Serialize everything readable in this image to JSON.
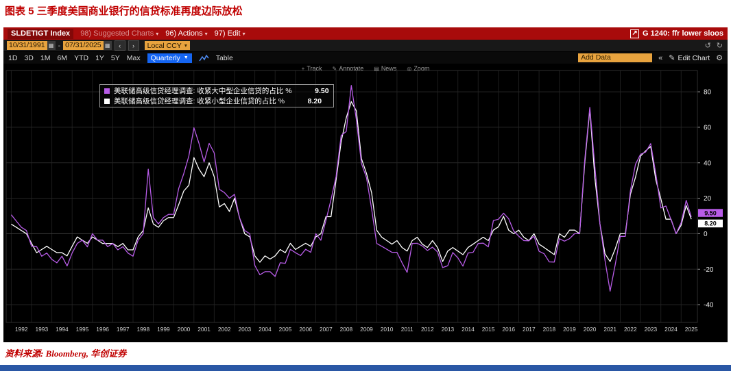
{
  "page": {
    "title": "图表 5  三季度美国商业银行的信贷标准再度边际放松",
    "source": "资料来源: Bloomberg,  华创证券",
    "accent_red": "#c00000",
    "bottom_bar_blue": "#2a57a5"
  },
  "icons": {
    "caret_down": "▾",
    "caret_down_filled": "▼",
    "prev": "‹",
    "next": "›",
    "undo": "↺",
    "redo": "↻",
    "collapse": "«",
    "pencil": "✎",
    "gear": "⚙",
    "popout": "↗",
    "calendar": "▦",
    "track": "+",
    "annotate": "✎",
    "news": "▤",
    "zoom": "◎"
  },
  "terminal": {
    "titlebar": {
      "ticker": "SLDETIGT Index",
      "suggested_charts": "98) Suggested Charts",
      "actions": "96) Actions",
      "edit": "97) Edit",
      "chart_ref": "G 1240: ffr lower sloos"
    },
    "toolbar": {
      "date_from": "10/31/1991",
      "date_to": "07/31/2025",
      "range_separator": "-",
      "currency": "Local CCY",
      "periods": [
        "1D",
        "3D",
        "1M",
        "6M",
        "YTD",
        "1Y",
        "5Y",
        "Max"
      ],
      "frequency": "Quarterly",
      "table": "Table",
      "add_data": "Add Data",
      "edit_chart": "Edit Chart"
    },
    "chart_tools": [
      {
        "label": "Track"
      },
      {
        "label": "Annotate"
      },
      {
        "label": "News"
      },
      {
        "label": "Zoom"
      }
    ]
  },
  "chart_data": {
    "type": "line",
    "frequency": "quarterly",
    "x_start_year": 1992,
    "x_tick_labels": [
      "1992",
      "1993",
      "1994",
      "1995",
      "1996",
      "1997",
      "1998",
      "1999",
      "2000",
      "2001",
      "2002",
      "2003",
      "2004",
      "2005",
      "2006",
      "2007",
      "2008",
      "2009",
      "2010",
      "2011",
      "2012",
      "2013",
      "2014",
      "2015",
      "2016",
      "2017",
      "2018",
      "2019",
      "2020",
      "2021",
      "2022",
      "2023",
      "2024",
      "2025"
    ],
    "yticks": [
      80,
      60,
      40,
      20,
      0,
      -20,
      -40
    ],
    "ylim": [
      -50,
      92
    ],
    "grid": true,
    "background": "#000000",
    "legend_position": "top-left",
    "series": [
      {
        "name": "美联储高级信贷经理调查: 收紧大中型企业信贷的占比 %",
        "color": "#b85ce8",
        "last_value": 9.5,
        "last_value_label": "9.50",
        "values": [
          10.7,
          7.1,
          3.6,
          1.8,
          -7.1,
          -7.3,
          -12.7,
          -10.9,
          -14.5,
          -16.4,
          -12.7,
          -18.2,
          -10.9,
          -5.5,
          -3.6,
          -7.4,
          0,
          -3.6,
          -3.6,
          -7.3,
          -5.5,
          -9.1,
          -7.3,
          -10.9,
          -12.7,
          -3.6,
          0,
          36.4,
          9.1,
          5.5,
          9.1,
          10.9,
          10.9,
          25.5,
          33.9,
          43.8,
          59.7,
          50.9,
          40.4,
          50.9,
          45.5,
          25,
          23.2,
          20,
          22.2,
          8.9,
          1.8,
          0,
          -17.9,
          -23.2,
          -21.4,
          -21.4,
          -24.1,
          -16.4,
          -16.7,
          -8.8,
          -10.7,
          -12.3,
          -8.8,
          -10.5,
          0,
          -3.7,
          7.5,
          19.2,
          32.2,
          55.4,
          57.6,
          83.6,
          64.2,
          39.6,
          31.5,
          14,
          -5.5,
          -7.1,
          -8.8,
          -10.5,
          -10.5,
          -16.4,
          -21.8,
          -5.5,
          -5.4,
          -6.9,
          -9.5,
          -7.6,
          -10.3,
          -19.1,
          -18.1,
          -10.6,
          -13.6,
          -18.3,
          -10.9,
          -10.5,
          -5.5,
          -5.3,
          -7.4,
          7.4,
          8.2,
          11.6,
          8.5,
          1.5,
          -1.4,
          -3.9,
          -4,
          -1.4,
          -9.9,
          -11.3,
          -15.9,
          -16,
          -2.8,
          -4.2,
          -2.8,
          0,
          0,
          41.5,
          71.2,
          37.7,
          5.5,
          -15.1,
          -32.4,
          -17.6,
          -1.5,
          -1.5,
          24.2,
          39.1,
          44.8,
          46,
          50.8,
          33.9,
          14.5,
          15.6,
          7.9,
          0,
          6.2,
          18.8,
          9.5
        ]
      },
      {
        "name": "美联储高级信贷经理调查: 收紧小型企业信贷的占比 %",
        "color": "#ffffff",
        "last_value": 8.2,
        "last_value_label": "8.20",
        "values": [
          5.4,
          3.6,
          1.8,
          0,
          -5.4,
          -10.7,
          -8.9,
          -7.1,
          -8.9,
          -10.7,
          -10.7,
          -12.5,
          -7.1,
          -1.8,
          -3.6,
          -5.4,
          -1.8,
          -3.6,
          -5.5,
          -5.5,
          -5.5,
          -7.3,
          -5.5,
          -9.1,
          -9.1,
          -1.8,
          1.8,
          14.5,
          5.5,
          3.6,
          7.3,
          9.1,
          9.1,
          16.4,
          24.1,
          27.3,
          42.9,
          36.4,
          32.1,
          40,
          32.1,
          15.1,
          17,
          12.5,
          20,
          8.9,
          0,
          -1.8,
          -12.5,
          -16.1,
          -12.5,
          -14.3,
          -12.5,
          -8.9,
          -10.7,
          -5.4,
          -8.9,
          -7.1,
          -5.4,
          -7.1,
          -1.8,
          0,
          9.6,
          9.6,
          30.2,
          51.8,
          65.3,
          74.5,
          69.2,
          42.3,
          33.9,
          23.1,
          2,
          -2,
          -3.9,
          -5.9,
          -3.9,
          -7.8,
          -9.8,
          -3.9,
          -2,
          -5.9,
          -7.8,
          -3.9,
          -7.8,
          -15.7,
          -9.8,
          -7.8,
          -9.8,
          -11.8,
          -7.8,
          -5.9,
          -3.9,
          -2,
          -3.9,
          2,
          3.9,
          9.8,
          2,
          0,
          2,
          -2,
          -3.9,
          0,
          -5.9,
          -7.8,
          -9.8,
          -11.8,
          0,
          -2,
          2,
          2,
          0,
          39.7,
          70.1,
          31.3,
          5.5,
          -11.4,
          -15.7,
          -8.6,
          0,
          0,
          22.2,
          31.8,
          43.8,
          46.7,
          49.2,
          30.4,
          19.7,
          8.2,
          8.2,
          0,
          4.8,
          15.9,
          8.2
        ]
      }
    ]
  }
}
